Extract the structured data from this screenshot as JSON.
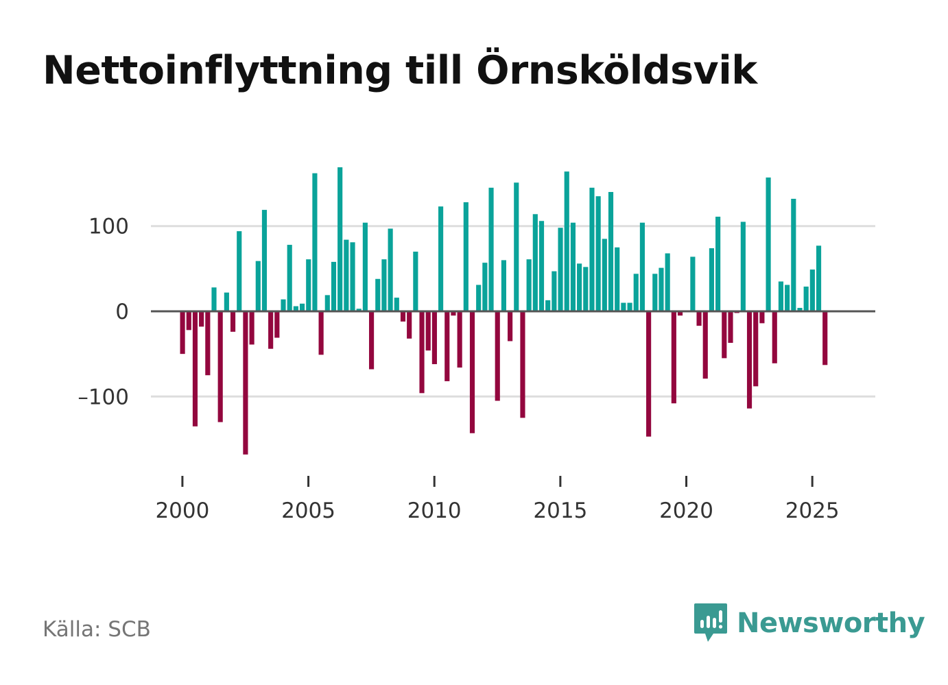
{
  "title": "Nettoinflyttning till Örnsköldsvik",
  "source": "Källa: SCB",
  "brand": {
    "name": "Newsworthy",
    "icon": "newsworthy-logo-icon"
  },
  "colors": {
    "positive": "#0aa39a",
    "negative": "#93073e",
    "grid": "#dddddd",
    "zero_line": "#555555",
    "brand": "#3a9a92"
  },
  "chart_data": {
    "type": "bar",
    "title": "Nettoinflyttning till Örnsköldsvik",
    "xlabel": "",
    "ylabel": "",
    "y_ticks": [
      100,
      0,
      -100
    ],
    "y_tick_labels": [
      "100",
      "0",
      "–100"
    ],
    "ylim": [
      -195,
      175
    ],
    "x_ticks": [
      2000,
      2005,
      2010,
      2015,
      2020,
      2025
    ],
    "x_tick_labels": [
      "2000",
      "2005",
      "2010",
      "2015",
      "2020",
      "2025"
    ],
    "xlim": [
      1998.75,
      2027.5
    ],
    "grid": true,
    "start_year": 2000,
    "periods_per_year": 4,
    "values": [
      -50,
      -22,
      -135,
      -18,
      -75,
      28,
      -130,
      22,
      -24,
      94,
      -168,
      -39,
      59,
      119,
      -44,
      -31,
      14,
      78,
      6,
      9,
      61,
      162,
      -51,
      19,
      58,
      169,
      84,
      81,
      3,
      104,
      -68,
      38,
      61,
      97,
      16,
      -12,
      -32,
      70,
      -96,
      -46,
      -62,
      123,
      -82,
      -5,
      -66,
      128,
      -143,
      31,
      57,
      145,
      -105,
      60,
      -35,
      151,
      -125,
      61,
      114,
      106,
      13,
      47,
      98,
      164,
      104,
      56,
      52,
      145,
      135,
      85,
      140,
      75,
      10,
      10,
      44,
      104,
      -147,
      44,
      51,
      68,
      -108,
      -5,
      0,
      64,
      -17,
      -79,
      74,
      111,
      -55,
      -37,
      -2,
      105,
      -114,
      -88,
      -14,
      157,
      -61,
      35,
      31,
      132,
      4,
      29,
      49,
      77,
      -63
    ]
  }
}
